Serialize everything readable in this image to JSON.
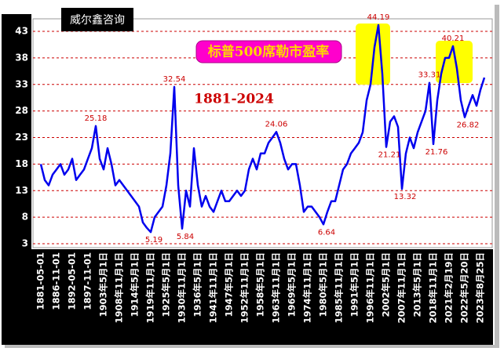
{
  "chart_data": {
    "type": "line",
    "title": "标普500席勒市盈率",
    "subtitle": "1881-2024",
    "brand": "威尔鑫咨询",
    "categories": [
      "1881-05-01",
      null,
      null,
      null,
      "1886-11-01",
      null,
      null,
      null,
      "1892-05-01",
      null,
      null,
      null,
      "1897-11-01",
      null,
      null,
      null,
      "1903年5月1日",
      null,
      null,
      null,
      "1908年11月1日",
      null,
      null,
      null,
      "1914年5月1日",
      null,
      null,
      null,
      "1919年11月1日",
      null,
      null,
      null,
      "1925年5月1日",
      null,
      null,
      null,
      "1930年11月1日",
      null,
      null,
      null,
      "1936年5月1日",
      null,
      null,
      null,
      "1941年11月1日",
      null,
      null,
      null,
      "1947年5月1日",
      null,
      null,
      null,
      "1952年11月1日",
      null,
      null,
      null,
      "1958年5月1日",
      null,
      null,
      null,
      "1963年11月1日",
      null,
      null,
      null,
      "1969年5月1日",
      null,
      null,
      null,
      "1974年11月1日",
      null,
      null,
      null,
      "1980年5月1日",
      null,
      null,
      null,
      "1985年11月1日",
      null,
      null,
      null,
      "1991年5月1日",
      null,
      null,
      null,
      "1996年11月1日",
      null,
      null,
      null,
      "2002年5月1日",
      null,
      null,
      null,
      "2007年11月1日",
      null,
      null,
      null,
      "2013年5月1日",
      null,
      null,
      null,
      "2018年11月1日",
      null,
      null,
      null,
      "2021年2月19日",
      null,
      null,
      null,
      "2022年5月20日",
      null,
      null,
      null,
      "2023年8月25日",
      null
    ],
    "series": [
      {
        "color": "#0000ee",
        "values": [
          18,
          15,
          14,
          16,
          17,
          18,
          16,
          17,
          19,
          15,
          16,
          17,
          19,
          21,
          25.18,
          19,
          17,
          21,
          18,
          14,
          15,
          14,
          13,
          12,
          11,
          10,
          7,
          6,
          5.19,
          8,
          9,
          10,
          14,
          20,
          32.54,
          14,
          5.84,
          13,
          10,
          21,
          14,
          10,
          12,
          10,
          9,
          11,
          13,
          11,
          11,
          12,
          13,
          12,
          13,
          17,
          19,
          17,
          20,
          20,
          22,
          23,
          24.06,
          22,
          19,
          17,
          18,
          18,
          14,
          9,
          10,
          10,
          9,
          8,
          6.64,
          9,
          11,
          11,
          14,
          17,
          18,
          20,
          21,
          22,
          24,
          30,
          33,
          40,
          44.19,
          35,
          21.21,
          26,
          27,
          25,
          13.32,
          20,
          23,
          21,
          24,
          26,
          28,
          33.31,
          21.76,
          30,
          35,
          38,
          38,
          40.21,
          36,
          30,
          26.82,
          29,
          31,
          29,
          32,
          34.3
        ],
        "value_labels": [
          null,
          null,
          null,
          null,
          null,
          null,
          null,
          null,
          null,
          null,
          null,
          null,
          null,
          null,
          "25.18",
          null,
          null,
          null,
          null,
          null,
          null,
          null,
          null,
          null,
          null,
          null,
          null,
          null,
          "5.19",
          null,
          null,
          null,
          null,
          null,
          "32.54",
          null,
          "5.84",
          null,
          null,
          null,
          null,
          null,
          null,
          null,
          null,
          null,
          null,
          null,
          null,
          null,
          null,
          null,
          null,
          null,
          null,
          null,
          null,
          null,
          null,
          null,
          "24.06",
          null,
          null,
          null,
          null,
          null,
          null,
          null,
          null,
          null,
          null,
          null,
          "6.64",
          null,
          null,
          null,
          null,
          null,
          null,
          null,
          null,
          null,
          null,
          null,
          null,
          null,
          "44.19",
          null,
          "21.21",
          null,
          null,
          null,
          "13.32",
          null,
          null,
          null,
          null,
          null,
          null,
          "33.31",
          "21.76",
          null,
          null,
          null,
          null,
          "40.21",
          null,
          null,
          "26.82",
          null,
          null,
          null,
          null,
          null
        ]
      }
    ],
    "ylim": [
      3,
      45
    ],
    "yticks": [
      3,
      8,
      13,
      18,
      23,
      28,
      33,
      38,
      43
    ],
    "grid": true
  }
}
